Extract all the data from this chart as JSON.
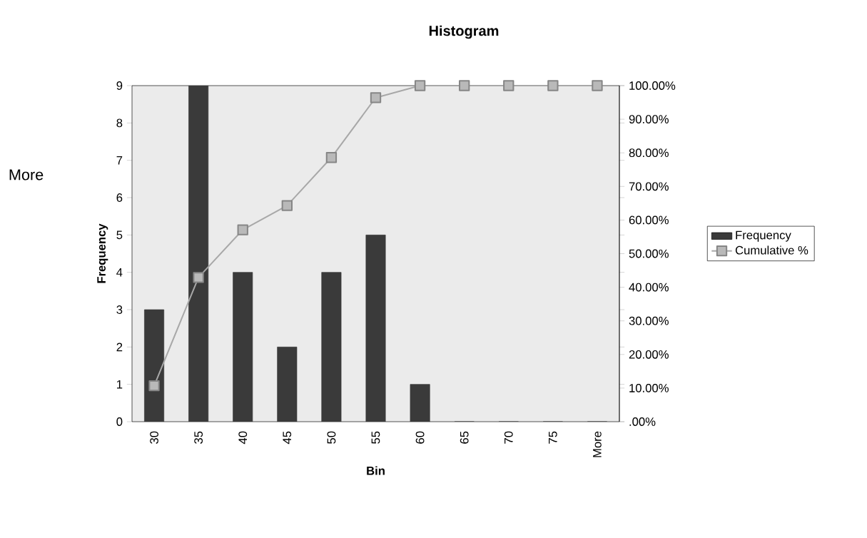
{
  "chart_data": {
    "type": "bar",
    "title": "Histogram",
    "xlabel": "Bin",
    "ylabel": "Frequency",
    "categories": [
      "30",
      "35",
      "40",
      "45",
      "50",
      "55",
      "60",
      "65",
      "70",
      "75",
      "More"
    ],
    "series": [
      {
        "name": "Frequency",
        "color": "#3a3a3a",
        "values": [
          3,
          9,
          4,
          2,
          4,
          5,
          1,
          0,
          0,
          0,
          0
        ]
      },
      {
        "name": "Cumulative %",
        "type": "line",
        "axis": "y2",
        "color": "#a8a8a8",
        "marker": "square",
        "values": [
          10.7,
          42.9,
          57.1,
          64.3,
          78.6,
          96.4,
          100,
          100,
          100,
          100,
          100
        ]
      }
    ],
    "ylim": [
      0,
      9
    ],
    "yticks": [
      0,
      1,
      2,
      3,
      4,
      5,
      6,
      7,
      8,
      9
    ],
    "y2lim": [
      0,
      100
    ],
    "y2ticks": [
      {
        "value": 0,
        "label": ".00%"
      },
      {
        "value": 10,
        "label": "10.00%"
      },
      {
        "value": 20,
        "label": "20.00%"
      },
      {
        "value": 30,
        "label": "30.00%"
      },
      {
        "value": 40,
        "label": "40.00%"
      },
      {
        "value": 50,
        "label": "50.00%"
      },
      {
        "value": 60,
        "label": "60.00%"
      },
      {
        "value": 70,
        "label": "70.00%"
      },
      {
        "value": 80,
        "label": "80.00%"
      },
      {
        "value": 90,
        "label": "90.00%"
      },
      {
        "value": 100,
        "label": "100.00%"
      }
    ],
    "legend": "right",
    "annotations": [
      "More"
    ]
  }
}
